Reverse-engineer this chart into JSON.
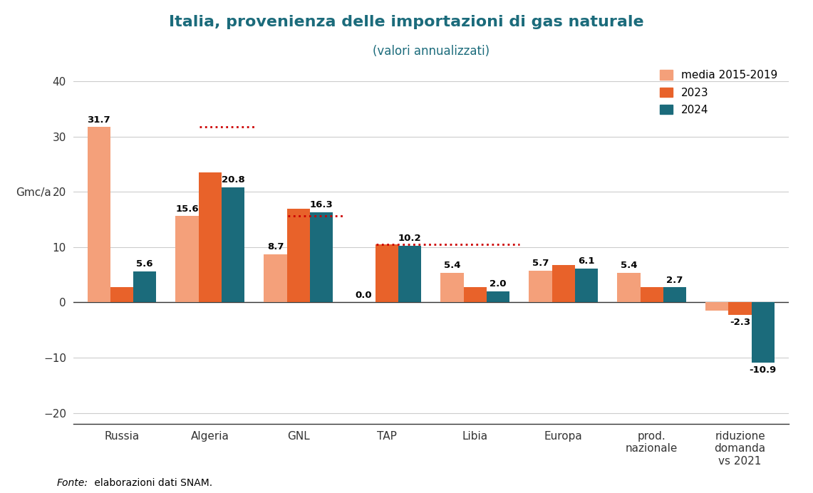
{
  "title": "Italia, provenienza delle importazioni di gas naturale",
  "subtitle": "(valori annualizzati)",
  "ylabel": "Gmc/a",
  "categories": [
    "Russia",
    "Algeria",
    "GNL",
    "TAP",
    "Libia",
    "Europa",
    "prod.\nnazionale",
    "riduzione\ndomanda\nvs 2021"
  ],
  "series": {
    "media 2015-2019": [
      31.7,
      15.6,
      8.7,
      0.0,
      5.4,
      5.7,
      5.4,
      -1.5
    ],
    "2023": [
      2.8,
      23.5,
      17.0,
      10.5,
      2.8,
      6.8,
      2.8,
      -2.3
    ],
    "2024": [
      5.6,
      20.8,
      16.3,
      10.2,
      2.0,
      6.1,
      2.7,
      -10.9
    ]
  },
  "bar_labels": {
    "media 2015-2019": [
      "31.7",
      "15.6",
      "8.7",
      "0.0",
      "5.4",
      "5.7",
      "5.4",
      ""
    ],
    "2023": [
      "",
      "",
      "",
      "",
      "",
      "",
      "",
      "-2.3"
    ],
    "2024": [
      "5.6",
      "20.8",
      "16.3",
      "10.2",
      "2.0",
      "6.1",
      "2.7",
      "-10.9"
    ]
  },
  "colors": {
    "media 2015-2019": "#F4A07A",
    "2023": "#E8622A",
    "2024": "#1B6B7B"
  },
  "dotted_line_color": "#CC0000",
  "ylim": [
    -22,
    44
  ],
  "yticks": [
    -20,
    -10,
    0,
    10,
    20,
    30,
    40
  ],
  "background_color": "#FFFFFF",
  "title_color": "#1B6B7B",
  "source_italic": "Fonte:",
  "source_normal": " elaborazioni dati SNAM.",
  "bar_width": 0.26
}
